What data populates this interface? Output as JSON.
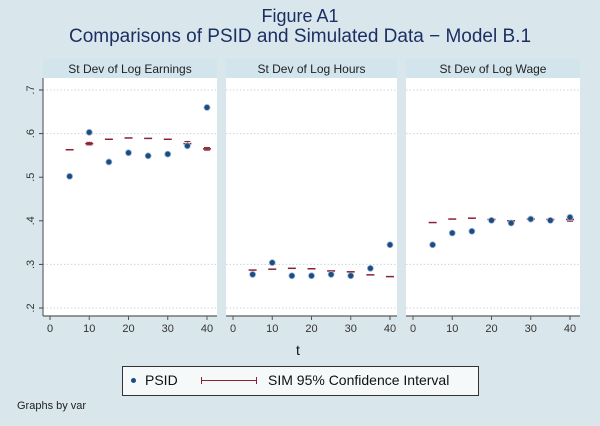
{
  "chart_data": {
    "type": "scatter",
    "title": "Figure A1",
    "subtitle": "Comparisons of PSID and Simulated Data − Model B.1",
    "xlabel": "t",
    "ylabel": "",
    "xlim": [
      0,
      40
    ],
    "ylim": [
      0.2,
      0.7
    ],
    "x_ticks": [
      "0",
      "10",
      "20",
      "30",
      "40"
    ],
    "x_tick_values": [
      0,
      10,
      20,
      30,
      40
    ],
    "y_ticks": [
      ".2",
      ".3",
      ".4",
      ".5",
      ".6",
      ".7"
    ],
    "y_tick_values": [
      0.2,
      0.3,
      0.4,
      0.5,
      0.6,
      0.7
    ],
    "grid": true,
    "grid_y_values": [
      0.2,
      0.3,
      0.6,
      0.7
    ],
    "legend": {
      "placement": "bottom",
      "entries": [
        "PSID",
        "SIM  95% Confidence Interval"
      ]
    },
    "note": "Graphs by var",
    "x": [
      5,
      10,
      15,
      20,
      25,
      30,
      35,
      40
    ],
    "panels": [
      {
        "label": "St Dev of Log Earnings",
        "series": [
          {
            "name": "PSID",
            "values": [
              0.502,
              0.603,
              0.535,
              0.556,
              0.549,
              0.553,
              0.572,
              0.66
            ]
          },
          {
            "name": "SIM",
            "values": [
              0.563,
              0.577,
              0.587,
              0.59,
              0.589,
              0.587,
              0.577,
              0.565
            ],
            "ci_halfwidth": [
              0.001,
              0.003,
              0.001,
              0.001,
              0.002,
              0.002,
              0.005,
              0.003
            ]
          }
        ]
      },
      {
        "label": "St Dev of Log Hours",
        "series": [
          {
            "name": "PSID",
            "values": [
              0.277,
              0.304,
              0.274,
              0.274,
              0.277,
              0.274,
              0.291,
              0.345
            ]
          },
          {
            "name": "SIM",
            "values": [
              0.287,
              0.289,
              0.291,
              0.29,
              0.285,
              0.283,
              0.276,
              0.272
            ],
            "ci_halfwidth": [
              0.001,
              0.001,
              0.001,
              0.001,
              0.001,
              0.001,
              0.001,
              0.001
            ]
          }
        ]
      },
      {
        "label": "St Dev of Log Wage",
        "series": [
          {
            "name": "PSID",
            "values": [
              0.345,
              0.372,
              0.376,
              0.401,
              0.395,
              0.404,
              0.401,
              0.408
            ]
          },
          {
            "name": "SIM",
            "values": [
              0.396,
              0.404,
              0.406,
              0.403,
              0.4,
              0.404,
              0.403,
              0.403
            ],
            "ci_halfwidth": [
              0.001,
              0.001,
              0.001,
              0.002,
              0.002,
              0.002,
              0.002,
              0.004
            ]
          }
        ]
      }
    ]
  },
  "colors": {
    "psid": "#1b4c86",
    "sim": "#8b2232",
    "title": "#1c2f63"
  }
}
